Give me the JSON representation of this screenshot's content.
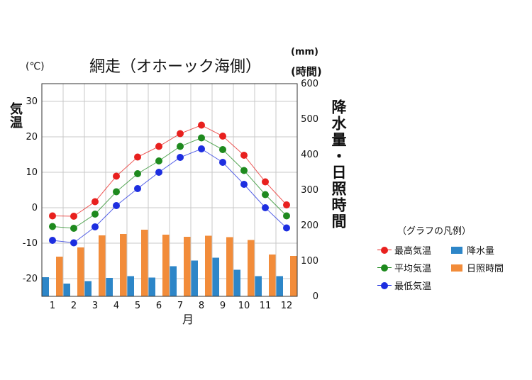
{
  "chart_data": {
    "type": "line+bar",
    "title": "網走（オホーック海側）",
    "xlabel": "月",
    "left_axis": {
      "label": "気温",
      "unit": "(℃)",
      "ylim": [
        -25,
        35
      ],
      "ticks": [
        -20,
        -10,
        0,
        10,
        20,
        30
      ]
    },
    "right_axis": {
      "label": "降水量・日照時間",
      "unit_top": "(mm)",
      "unit_bottom": "(時間)",
      "ylim": [
        0,
        600
      ],
      "ticks": [
        0,
        100,
        200,
        300,
        400,
        500,
        600
      ]
    },
    "categories": [
      "1",
      "2",
      "3",
      "4",
      "5",
      "6",
      "7",
      "8",
      "9",
      "10",
      "11",
      "12"
    ],
    "grid": true,
    "legend": {
      "title": "（グラフの凡例）",
      "placement": "right",
      "entries": [
        "最高気温",
        "平均気温",
        "最低気温",
        "降水量",
        "日照時間"
      ]
    },
    "series": [
      {
        "name": "最高気温",
        "kind": "line",
        "axis": "left",
        "color": "#e8201e",
        "values": [
          -2.3,
          -2.4,
          1.7,
          8.9,
          14.3,
          17.3,
          20.9,
          23.3,
          20.2,
          14.8,
          7.3,
          0.8
        ]
      },
      {
        "name": "平均気温",
        "kind": "line",
        "axis": "left",
        "color": "#1e8a1e",
        "values": [
          -5.3,
          -5.8,
          -1.8,
          4.5,
          9.6,
          13.2,
          17.3,
          19.7,
          16.4,
          10.5,
          3.7,
          -2.3
        ]
      },
      {
        "name": "最低気温",
        "kind": "line",
        "axis": "left",
        "color": "#1d2ee0",
        "values": [
          -9.2,
          -9.9,
          -5.4,
          0.6,
          5.4,
          10.0,
          14.2,
          16.6,
          12.8,
          6.6,
          0.0,
          -5.7
        ]
      },
      {
        "name": "降水量",
        "kind": "bar",
        "axis": "right",
        "color": "#2d86c8",
        "values": [
          54,
          36,
          43,
          52,
          57,
          53,
          85,
          101,
          109,
          75,
          57,
          57
        ]
      },
      {
        "name": "日照時間",
        "kind": "bar",
        "axis": "right",
        "color": "#f28c3a",
        "values": [
          112,
          138,
          172,
          176,
          188,
          174,
          168,
          171,
          167,
          159,
          118,
          114
        ]
      }
    ]
  }
}
